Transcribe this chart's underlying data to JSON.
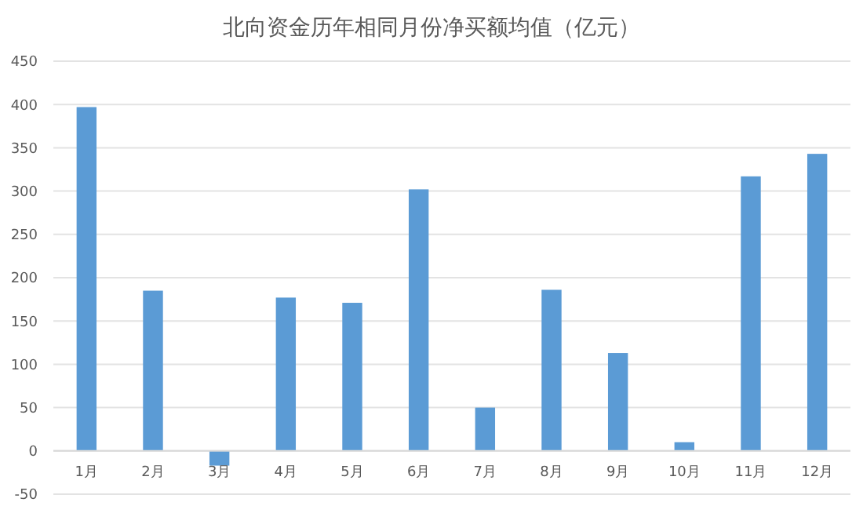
{
  "chart_data": {
    "type": "bar",
    "title": "北向资金历年相同月份净买额均值（亿元）",
    "categories": [
      "1月",
      "2月",
      "3月",
      "4月",
      "5月",
      "6月",
      "7月",
      "8月",
      "9月",
      "10月",
      "11月",
      "12月"
    ],
    "values": [
      397,
      185,
      -17,
      177,
      171,
      302,
      50,
      186,
      113,
      10,
      317,
      343
    ],
    "color": "#5b9bd5",
    "ylim": [
      -50,
      450
    ],
    "yticks": [
      -50,
      0,
      50,
      100,
      150,
      200,
      250,
      300,
      350,
      400,
      450
    ],
    "grid": "y"
  }
}
